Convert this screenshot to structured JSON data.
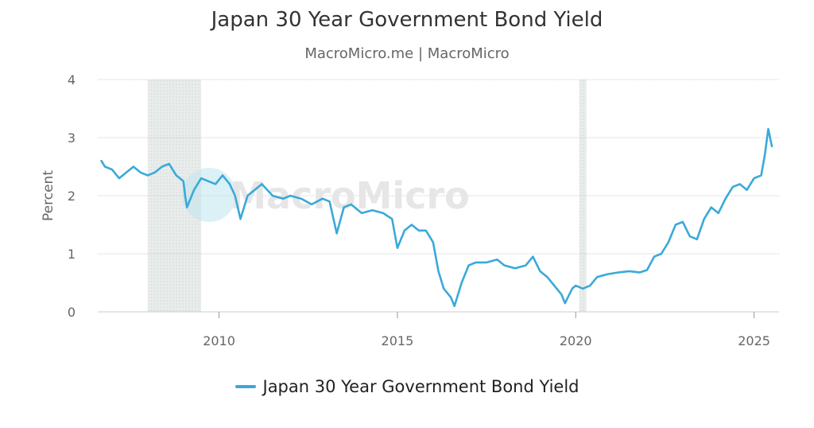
{
  "title": "Japan 30 Year Government Bond Yield",
  "subtitle": "MacroMicro.me | MacroMicro",
  "watermark": "MacroMicro",
  "colors": {
    "series": "#3aa9d9",
    "grid": "#cccccc",
    "shade": "#e8ecea"
  },
  "chart_data": {
    "type": "line",
    "ylabel": "Percent",
    "xlabel": "",
    "ylim": [
      0,
      4
    ],
    "xlim": [
      2006.6,
      2025.7
    ],
    "yticks": [
      0,
      1,
      2,
      3,
      4
    ],
    "xticks": [
      2010,
      2015,
      2020,
      2025
    ],
    "grid": true,
    "legend": "bottom-center",
    "shaded_periods": [
      [
        2008.0,
        2009.5
      ],
      [
        2020.1,
        2020.3
      ]
    ],
    "series": [
      {
        "name": "Japan 30 Year Government Bond Yield",
        "points": [
          [
            2006.7,
            2.6
          ],
          [
            2006.8,
            2.5
          ],
          [
            2007.0,
            2.45
          ],
          [
            2007.2,
            2.3
          ],
          [
            2007.4,
            2.4
          ],
          [
            2007.6,
            2.5
          ],
          [
            2007.8,
            2.4
          ],
          [
            2008.0,
            2.35
          ],
          [
            2008.2,
            2.4
          ],
          [
            2008.4,
            2.5
          ],
          [
            2008.6,
            2.55
          ],
          [
            2008.8,
            2.35
          ],
          [
            2009.0,
            2.25
          ],
          [
            2009.05,
            2.0
          ],
          [
            2009.1,
            1.8
          ],
          [
            2009.3,
            2.1
          ],
          [
            2009.5,
            2.3
          ],
          [
            2009.7,
            2.25
          ],
          [
            2009.9,
            2.2
          ],
          [
            2010.1,
            2.35
          ],
          [
            2010.3,
            2.2
          ],
          [
            2010.45,
            2.0
          ],
          [
            2010.6,
            1.6
          ],
          [
            2010.8,
            2.0
          ],
          [
            2011.0,
            2.1
          ],
          [
            2011.2,
            2.2
          ],
          [
            2011.5,
            2.0
          ],
          [
            2011.8,
            1.95
          ],
          [
            2012.0,
            2.0
          ],
          [
            2012.3,
            1.95
          ],
          [
            2012.6,
            1.85
          ],
          [
            2012.9,
            1.95
          ],
          [
            2013.1,
            1.9
          ],
          [
            2013.3,
            1.35
          ],
          [
            2013.5,
            1.8
          ],
          [
            2013.7,
            1.85
          ],
          [
            2014.0,
            1.7
          ],
          [
            2014.3,
            1.75
          ],
          [
            2014.6,
            1.7
          ],
          [
            2014.85,
            1.6
          ],
          [
            2015.0,
            1.1
          ],
          [
            2015.2,
            1.4
          ],
          [
            2015.4,
            1.5
          ],
          [
            2015.6,
            1.4
          ],
          [
            2015.8,
            1.4
          ],
          [
            2016.0,
            1.2
          ],
          [
            2016.15,
            0.7
          ],
          [
            2016.3,
            0.4
          ],
          [
            2016.5,
            0.25
          ],
          [
            2016.6,
            0.1
          ],
          [
            2016.8,
            0.5
          ],
          [
            2017.0,
            0.8
          ],
          [
            2017.2,
            0.85
          ],
          [
            2017.5,
            0.85
          ],
          [
            2017.8,
            0.9
          ],
          [
            2018.0,
            0.8
          ],
          [
            2018.3,
            0.75
          ],
          [
            2018.6,
            0.8
          ],
          [
            2018.8,
            0.95
          ],
          [
            2019.0,
            0.7
          ],
          [
            2019.2,
            0.6
          ],
          [
            2019.4,
            0.45
          ],
          [
            2019.6,
            0.3
          ],
          [
            2019.7,
            0.15
          ],
          [
            2019.9,
            0.4
          ],
          [
            2020.0,
            0.45
          ],
          [
            2020.2,
            0.4
          ],
          [
            2020.4,
            0.45
          ],
          [
            2020.6,
            0.6
          ],
          [
            2020.9,
            0.65
          ],
          [
            2021.2,
            0.68
          ],
          [
            2021.5,
            0.7
          ],
          [
            2021.8,
            0.68
          ],
          [
            2022.0,
            0.72
          ],
          [
            2022.2,
            0.95
          ],
          [
            2022.4,
            1.0
          ],
          [
            2022.6,
            1.2
          ],
          [
            2022.8,
            1.5
          ],
          [
            2023.0,
            1.55
          ],
          [
            2023.2,
            1.3
          ],
          [
            2023.4,
            1.25
          ],
          [
            2023.6,
            1.6
          ],
          [
            2023.8,
            1.8
          ],
          [
            2024.0,
            1.7
          ],
          [
            2024.2,
            1.95
          ],
          [
            2024.4,
            2.15
          ],
          [
            2024.6,
            2.2
          ],
          [
            2024.8,
            2.1
          ],
          [
            2025.0,
            2.3
          ],
          [
            2025.2,
            2.35
          ],
          [
            2025.3,
            2.7
          ],
          [
            2025.4,
            3.15
          ],
          [
            2025.5,
            2.85
          ]
        ]
      }
    ]
  }
}
